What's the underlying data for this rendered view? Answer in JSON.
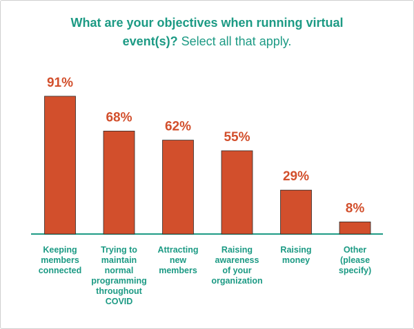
{
  "title": {
    "bold": "What are your objectives when running virtual event(s)?",
    "regular": "Select all that apply."
  },
  "colors": {
    "bar": "#d24f2c",
    "bar_stroke": "#2b2b2b",
    "accent": "#1c9a84"
  },
  "chart_data": {
    "type": "bar",
    "title": "What are your objectives when running virtual event(s)? Select all that apply.",
    "categories": [
      "Keeping\nmembers\nconnected",
      "Trying to\nmaintain\nnormal\nprogramming\nthroughout\nCOVID",
      "Attracting\nnew\nmembers",
      "Raising\nawareness\nof your\norganization",
      "Raising\nmoney",
      "Other\n(please\nspecify)"
    ],
    "values": [
      91,
      68,
      62,
      55,
      29,
      8
    ],
    "value_labels": [
      "91%",
      "68%",
      "62%",
      "55%",
      "29%",
      "8%"
    ],
    "unit": "%",
    "ylim": [
      0,
      100
    ],
    "grid": false,
    "legend": "none"
  }
}
